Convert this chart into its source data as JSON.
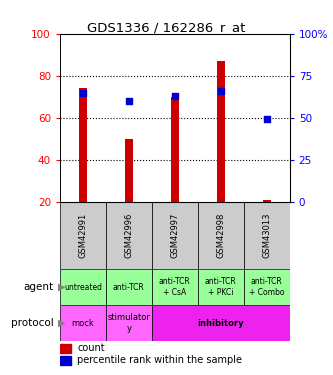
{
  "title": "GDS1336 / 162286_r_at",
  "samples": [
    "GSM42991",
    "GSM42996",
    "GSM42997",
    "GSM42998",
    "GSM43013"
  ],
  "counts": [
    74,
    50,
    70,
    87,
    21
  ],
  "percentiles": [
    65,
    60,
    63,
    66,
    49
  ],
  "ylim_left": [
    20,
    100
  ],
  "yticks_left": [
    20,
    40,
    60,
    80,
    100
  ],
  "yticks_right": [
    0,
    25,
    50,
    75,
    100
  ],
  "ytick_labels_right": [
    "0",
    "25",
    "50",
    "75",
    "100%"
  ],
  "bar_color": "#cc0000",
  "dot_color": "#0000cc",
  "agent_labels": [
    "untreated",
    "anti-TCR",
    "anti-TCR\n+ CsA",
    "anti-TCR\n+ PKCi",
    "anti-TCR\n+ Combo"
  ],
  "agent_color": "#99ff99",
  "protocol_data": [
    {
      "label": "mock",
      "start": 0,
      "end": 1,
      "color": "#ff66ff"
    },
    {
      "label": "stimulator\ny",
      "start": 1,
      "end": 2,
      "color": "#ff66ff"
    },
    {
      "label": "inhibitory",
      "start": 2,
      "end": 5,
      "color": "#ee22ee"
    }
  ],
  "legend_count_color": "#cc0000",
  "legend_pct_color": "#0000cc",
  "sample_bg_color": "#cccccc",
  "bar_width": 0.18
}
